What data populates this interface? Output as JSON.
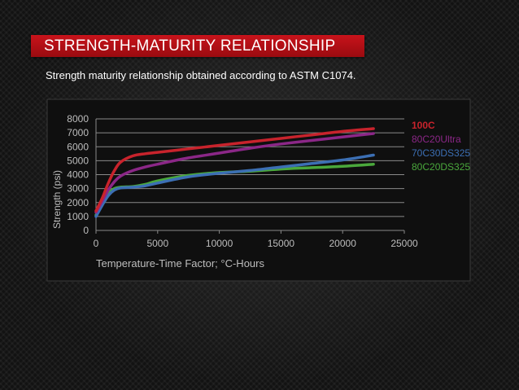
{
  "slide": {
    "title": "STRENGTH-MATURITY RELATIONSHIP",
    "subtitle": "Strength maturity relationship obtained according to ASTM C1074."
  },
  "colors": {
    "title_bar": "#b5101a",
    "background": "#121212",
    "grid": "#8a8a8a",
    "axis_text": "#bdbdbd"
  },
  "chart_data": {
    "type": "line",
    "title": "",
    "xlabel": "Temperature-Time Factor; °C-Hours",
    "ylabel": "Strength (psi)",
    "xlim": [
      0,
      25000
    ],
    "ylim": [
      0,
      8000
    ],
    "x_ticks": [
      0,
      5000,
      10000,
      15000,
      20000,
      25000
    ],
    "y_ticks": [
      0,
      1000,
      2000,
      3000,
      4000,
      5000,
      6000,
      7000,
      8000
    ],
    "grid": true,
    "legend_position": "right",
    "series": [
      {
        "name": "100C",
        "color": "#c8232c",
        "x": [
          0,
          500,
          1000,
          1500,
          2000,
          3000,
          4000,
          5000,
          7500,
          10000,
          12500,
          15000,
          17500,
          20000,
          22500
        ],
        "y": [
          1400,
          2300,
          3400,
          4300,
          4900,
          5350,
          5500,
          5600,
          5850,
          6100,
          6350,
          6600,
          6850,
          7100,
          7300
        ]
      },
      {
        "name": "80C20Ultra",
        "color": "#8b2787",
        "x": [
          0,
          500,
          1000,
          1500,
          2000,
          3000,
          4000,
          5000,
          7500,
          10000,
          12500,
          15000,
          17500,
          20000,
          22500
        ],
        "y": [
          1300,
          2100,
          2900,
          3500,
          3900,
          4300,
          4550,
          4750,
          5200,
          5550,
          5900,
          6200,
          6450,
          6700,
          6950
        ]
      },
      {
        "name": "70C30DS325",
        "color": "#3c6fb4",
        "x": [
          0,
          500,
          1000,
          1500,
          2000,
          3000,
          4000,
          5000,
          7500,
          10000,
          12500,
          15000,
          17500,
          20000,
          22500
        ],
        "y": [
          1000,
          1800,
          2500,
          2900,
          3050,
          3100,
          3200,
          3400,
          3850,
          4100,
          4300,
          4550,
          4800,
          5050,
          5400
        ]
      },
      {
        "name": "80C20DS325",
        "color": "#4aa83c",
        "x": [
          0,
          500,
          1000,
          1500,
          2000,
          3000,
          4000,
          5000,
          7500,
          10000,
          12500,
          15000,
          17500,
          20000,
          22500
        ],
        "y": [
          1100,
          2000,
          2700,
          3000,
          3100,
          3150,
          3300,
          3550,
          3950,
          4150,
          4250,
          4400,
          4500,
          4600,
          4750
        ]
      }
    ]
  }
}
